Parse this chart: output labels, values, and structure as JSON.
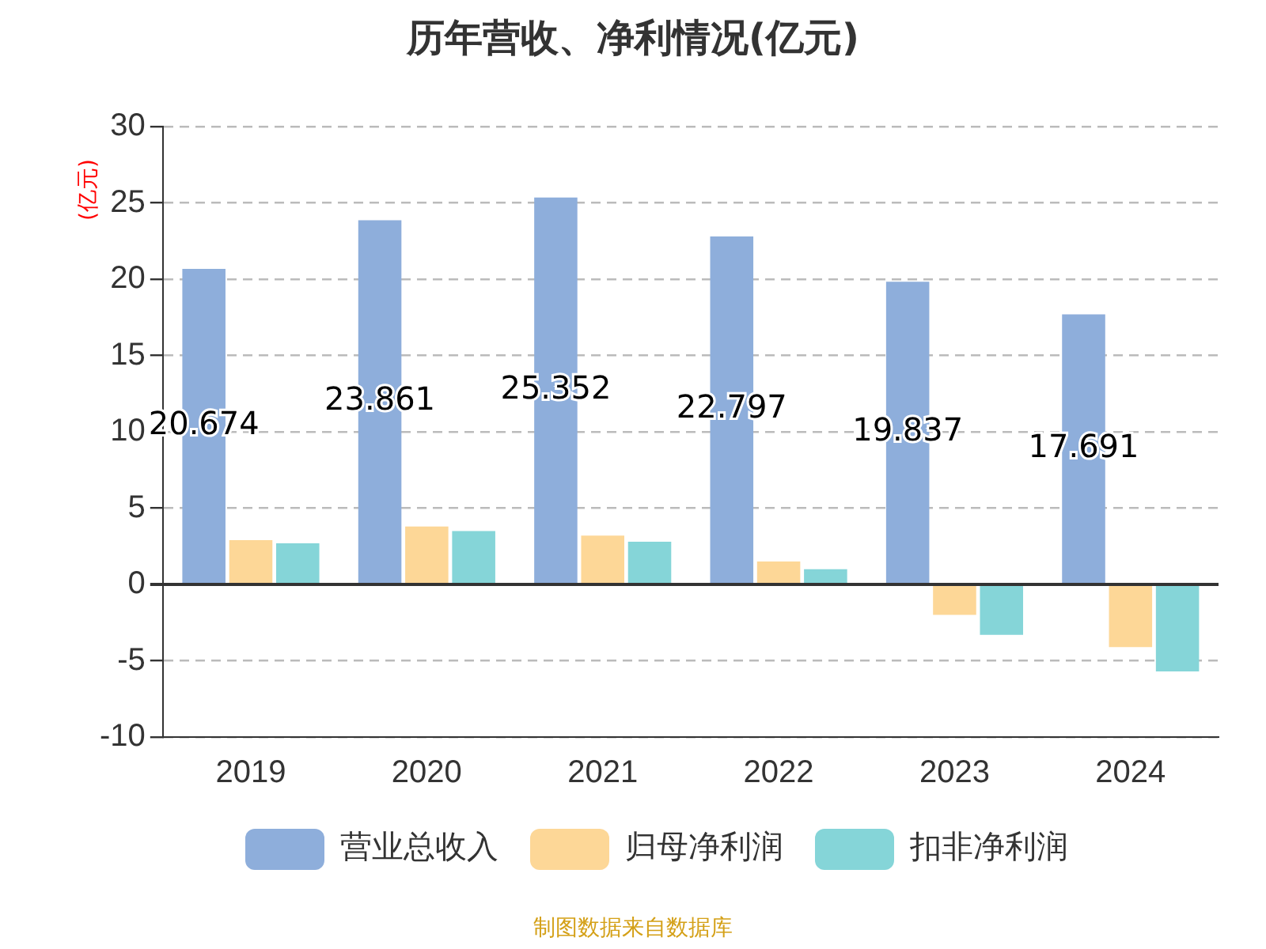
{
  "chart_data": {
    "type": "bar",
    "title": "历年营收、净利情况(亿元)",
    "ylabel": "(亿元)",
    "categories": [
      "2019",
      "2020",
      "2021",
      "2022",
      "2023",
      "2024"
    ],
    "series": [
      {
        "name": "营业总收入",
        "color": "#8eaedb",
        "values": [
          20.674,
          23.861,
          25.352,
          22.797,
          19.837,
          17.691
        ],
        "value_labels": [
          "20.674",
          "23.861",
          "25.352",
          "22.797",
          "19.837",
          "17.691"
        ]
      },
      {
        "name": "归母净利润",
        "color": "#fdd797",
        "values": [
          2.9,
          3.8,
          3.2,
          1.5,
          -2.0,
          -4.1
        ]
      },
      {
        "name": "扣非净利润",
        "color": "#85d5d8",
        "values": [
          2.7,
          3.5,
          2.8,
          1.0,
          -3.3,
          -5.7
        ]
      }
    ],
    "ylim": [
      -10,
      30
    ],
    "yticks": [
      -10,
      -5,
      0,
      5,
      10,
      15,
      20,
      25,
      30
    ],
    "grid": "y",
    "legend": "bottom",
    "annotations": [
      "制图数据来自数据库"
    ]
  }
}
